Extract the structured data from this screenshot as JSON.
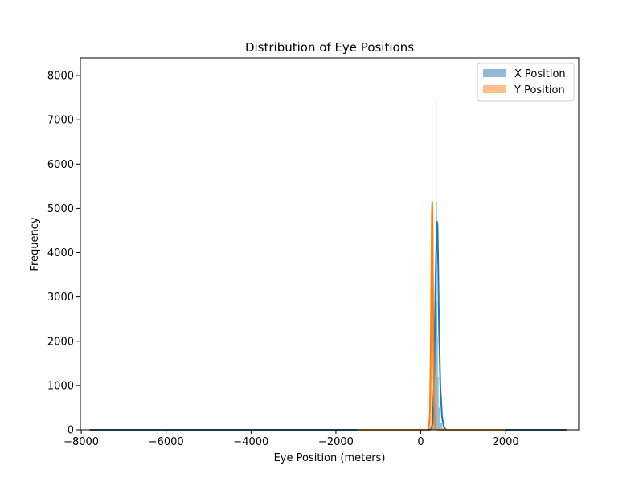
{
  "chart_data": {
    "type": "histogram",
    "title": "Distribution of Eye Positions",
    "xlabel": "Eye Position (meters)",
    "ylabel": "Frequency",
    "xlim": [
      -8020,
      3720
    ],
    "ylim": [
      0,
      8400
    ],
    "x_ticks": [
      -8000,
      -6000,
      -4000,
      -2000,
      0,
      2000
    ],
    "x_tick_labels": [
      "−8000",
      "−6000",
      "−4000",
      "−2000",
      "0",
      "2000"
    ],
    "y_ticks": [
      0,
      1000,
      2000,
      3000,
      4000,
      5000,
      6000,
      7000,
      8000
    ],
    "y_tick_labels": [
      "0",
      "1000",
      "2000",
      "3000",
      "4000",
      "5000",
      "6000",
      "7000",
      "8000"
    ],
    "grid": false,
    "legend_position": "top-right",
    "series": [
      {
        "name": "X Position",
        "color": "#1f77b4",
        "kde_color": "#1f77b4",
        "bar_opacity": 0.5,
        "bins": [
          {
            "x0": 260,
            "x1": 280,
            "y": 20
          },
          {
            "x0": 280,
            "x1": 300,
            "y": 60
          },
          {
            "x0": 300,
            "x1": 310,
            "y": 400
          },
          {
            "x0": 310,
            "x1": 320,
            "y": 1400
          },
          {
            "x0": 320,
            "x1": 330,
            "y": 2100
          },
          {
            "x0": 330,
            "x1": 340,
            "y": 3200
          },
          {
            "x0": 340,
            "x1": 350,
            "y": 3700
          },
          {
            "x0": 350,
            "x1": 360,
            "y": 5300
          },
          {
            "x0": 360,
            "x1": 370,
            "y": 7450
          },
          {
            "x0": 370,
            "x1": 380,
            "y": 5150
          },
          {
            "x0": 380,
            "x1": 390,
            "y": 2900
          },
          {
            "x0": 390,
            "x1": 400,
            "y": 2100
          },
          {
            "x0": 400,
            "x1": 420,
            "y": 1200
          },
          {
            "x0": 420,
            "x1": 450,
            "y": 500
          },
          {
            "x0": 450,
            "x1": 500,
            "y": 150
          },
          {
            "x0": 500,
            "x1": 560,
            "y": 30
          }
        ],
        "kde": [
          [
            -7800,
            0
          ],
          [
            -2000,
            0
          ],
          [
            200,
            0
          ],
          [
            250,
            20
          ],
          [
            280,
            150
          ],
          [
            310,
            900
          ],
          [
            330,
            2200
          ],
          [
            350,
            3500
          ],
          [
            370,
            4300
          ],
          [
            385,
            4700
          ],
          [
            395,
            4600
          ],
          [
            410,
            3700
          ],
          [
            430,
            2300
          ],
          [
            460,
            1000
          ],
          [
            500,
            300
          ],
          [
            540,
            60
          ],
          [
            600,
            0
          ],
          [
            3450,
            0
          ]
        ]
      },
      {
        "name": "Y Position",
        "color": "#ff7f0e",
        "kde_color": "#ff7f0e",
        "bar_opacity": 0.5,
        "bins": [
          {
            "x0": 200,
            "x1": 220,
            "y": 30
          },
          {
            "x0": 220,
            "x1": 240,
            "y": 300
          },
          {
            "x0": 240,
            "x1": 250,
            "y": 1400
          },
          {
            "x0": 250,
            "x1": 260,
            "y": 3000
          },
          {
            "x0": 260,
            "x1": 270,
            "y": 4300
          },
          {
            "x0": 270,
            "x1": 280,
            "y": 2400
          },
          {
            "x0": 280,
            "x1": 290,
            "y": 900
          },
          {
            "x0": 290,
            "x1": 310,
            "y": 250
          },
          {
            "x0": 310,
            "x1": 340,
            "y": 40
          }
        ],
        "kde": [
          [
            -1500,
            0
          ],
          [
            150,
            0
          ],
          [
            190,
            40
          ],
          [
            215,
            400
          ],
          [
            235,
            1800
          ],
          [
            250,
            3600
          ],
          [
            262,
            4900
          ],
          [
            270,
            5150
          ],
          [
            278,
            4700
          ],
          [
            288,
            3300
          ],
          [
            300,
            1700
          ],
          [
            315,
            600
          ],
          [
            335,
            120
          ],
          [
            360,
            10
          ],
          [
            420,
            0
          ],
          [
            2000,
            0
          ]
        ]
      }
    ]
  }
}
